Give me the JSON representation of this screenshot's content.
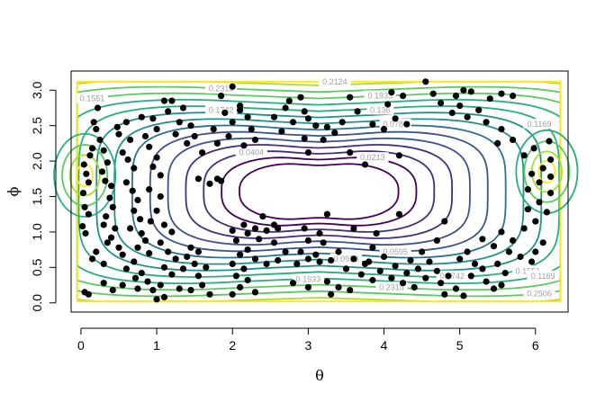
{
  "chart_data": {
    "type": "scatter",
    "title": "",
    "xlabel": "θ",
    "ylabel": "ϕ",
    "xlim": [
      -0.13,
      6.43
    ],
    "ylim": [
      -0.13,
      3.27
    ],
    "xticks": [
      "0",
      "1",
      "2",
      "3",
      "4",
      "5",
      "6"
    ],
    "yticks": [
      "0.0",
      "0.5",
      "1.0",
      "1.5",
      "2.0",
      "2.5",
      "3.0"
    ],
    "grid": false,
    "legend": "none",
    "contour_colors": [
      "#440154",
      "#472d7b",
      "#3b528b",
      "#2c728e",
      "#21918c",
      "#28ae80",
      "#5ec962",
      "#addc30",
      "#fde725"
    ],
    "contour_labels": [
      {
        "text": "0.0404",
        "x": 2.25,
        "y": 2.12
      },
      {
        "text": "0.0213",
        "x": 3.85,
        "y": 2.05
      },
      {
        "text": "0.0595",
        "x": 4.15,
        "y": 0.72
      },
      {
        "text": "0.0786",
        "x": 4.15,
        "y": 2.52
      },
      {
        "text": "0.0978",
        "x": 3.5,
        "y": 0.62
      },
      {
        "text": "0.1169",
        "x": 6.05,
        "y": 2.52
      },
      {
        "text": "0.136",
        "x": 3.95,
        "y": 2.72
      },
      {
        "text": "0.1551",
        "x": 0.15,
        "y": 2.88
      },
      {
        "text": "0.1742",
        "x": 1.85,
        "y": 2.72
      },
      {
        "text": "0.1933",
        "x": 3.95,
        "y": 2.92
      },
      {
        "text": "0.2124",
        "x": 3.35,
        "y": 3.12
      },
      {
        "text": "0.2315",
        "x": 1.85,
        "y": 3.02
      },
      {
        "text": "0.1551",
        "x": 5.9,
        "y": 0.45
      },
      {
        "text": "0.1169",
        "x": 6.1,
        "y": 0.38
      },
      {
        "text": "0.1742",
        "x": 4.9,
        "y": 0.38
      },
      {
        "text": "0.2506",
        "x": 6.05,
        "y": 0.13
      },
      {
        "text": "0.1933",
        "x": 3.0,
        "y": 0.33
      },
      {
        "text": "0.2315",
        "x": 4.1,
        "y": 0.22
      }
    ],
    "points": [
      [
        0.04,
        1.95
      ],
      [
        0.07,
        1.82
      ],
      [
        0.1,
        1.7
      ],
      [
        0.03,
        1.55
      ],
      [
        0.05,
        1.35
      ],
      [
        0.1,
        1.25
      ],
      [
        0.02,
        1.08
      ],
      [
        0.06,
        0.98
      ],
      [
        0.12,
        2.08
      ],
      [
        0.15,
        2.18
      ],
      [
        0.17,
        2.55
      ],
      [
        0.22,
        2.75
      ],
      [
        0.2,
        2.45
      ],
      [
        0.25,
        2.3
      ],
      [
        0.3,
        2.15
      ],
      [
        0.35,
        1.98
      ],
      [
        0.28,
        1.85
      ],
      [
        0.32,
        1.72
      ],
      [
        0.4,
        1.65
      ],
      [
        0.38,
        1.48
      ],
      [
        0.42,
        1.35
      ],
      [
        0.33,
        1.22
      ],
      [
        0.3,
        1.1
      ],
      [
        0.45,
        1.05
      ],
      [
        0.4,
        0.92
      ],
      [
        0.35,
        0.85
      ],
      [
        0.5,
        0.78
      ],
      [
        0.2,
        0.72
      ],
      [
        0.15,
        0.62
      ],
      [
        0.3,
        0.55
      ],
      [
        0.55,
        0.68
      ],
      [
        0.48,
        2.48
      ],
      [
        0.5,
        2.38
      ],
      [
        0.6,
        2.55
      ],
      [
        0.65,
        2.3
      ],
      [
        0.55,
        2.12
      ],
      [
        0.62,
        2.02
      ],
      [
        0.7,
        1.9
      ],
      [
        0.6,
        1.7
      ],
      [
        0.68,
        1.58
      ],
      [
        0.75,
        1.45
      ],
      [
        0.7,
        1.3
      ],
      [
        0.78,
        1.18
      ],
      [
        0.65,
        1.05
      ],
      [
        0.8,
        0.98
      ],
      [
        0.85,
        0.88
      ],
      [
        0.75,
        0.78
      ],
      [
        0.9,
        0.7
      ],
      [
        0.7,
        0.58
      ],
      [
        0.6,
        0.48
      ],
      [
        0.8,
        0.42
      ],
      [
        0.72,
        0.35
      ],
      [
        0.05,
        0.15
      ],
      [
        0.1,
        0.12
      ],
      [
        0.3,
        0.28
      ],
      [
        0.42,
        0.18
      ],
      [
        0.55,
        0.25
      ],
      [
        0.75,
        0.2
      ],
      [
        0.88,
        0.3
      ],
      [
        0.95,
        0.18
      ],
      [
        0.8,
        2.62
      ],
      [
        0.95,
        2.6
      ],
      [
        1.0,
        2.45
      ],
      [
        0.85,
        2.35
      ],
      [
        0.9,
        2.2
      ],
      [
        1.0,
        2.05
      ],
      [
        0.95,
        1.92
      ],
      [
        1.05,
        1.8
      ],
      [
        0.9,
        1.6
      ],
      [
        1.05,
        1.5
      ],
      [
        1.0,
        1.3
      ],
      [
        0.92,
        1.15
      ],
      [
        1.1,
        1.1
      ],
      [
        1.2,
        1.0
      ],
      [
        1.05,
        0.85
      ],
      [
        1.15,
        0.72
      ],
      [
        1.25,
        0.62
      ],
      [
        1.1,
        0.5
      ],
      [
        1.2,
        0.4
      ],
      [
        1.05,
        0.25
      ],
      [
        1.3,
        0.2
      ],
      [
        1.1,
        0.08
      ],
      [
        1.0,
        0.05
      ],
      [
        1.15,
        2.7
      ],
      [
        1.2,
        2.85
      ],
      [
        1.35,
        2.75
      ],
      [
        1.1,
        2.85
      ],
      [
        1.3,
        2.55
      ],
      [
        1.45,
        2.5
      ],
      [
        1.25,
        2.38
      ],
      [
        1.5,
        2.35
      ],
      [
        1.4,
        2.25
      ],
      [
        1.6,
        2.12
      ],
      [
        1.45,
        0.78
      ],
      [
        1.55,
        0.72
      ],
      [
        1.4,
        0.65
      ],
      [
        1.5,
        0.55
      ],
      [
        1.65,
        0.5
      ],
      [
        1.35,
        0.48
      ],
      [
        1.55,
        0.38
      ],
      [
        1.6,
        0.25
      ],
      [
        1.45,
        0.18
      ],
      [
        1.7,
        0.12
      ],
      [
        1.55,
        1.75
      ],
      [
        1.7,
        1.68
      ],
      [
        1.85,
        1.72
      ],
      [
        1.8,
        2.25
      ],
      [
        1.95,
        2.35
      ],
      [
        2.0,
        2.55
      ],
      [
        1.9,
        2.68
      ],
      [
        2.1,
        2.72
      ],
      [
        1.85,
        2.92
      ],
      [
        2.0,
        3.05
      ],
      [
        2.1,
        2.78
      ],
      [
        2.2,
        2.62
      ],
      [
        2.25,
        2.45
      ],
      [
        2.3,
        2.3
      ],
      [
        2.15,
        2.22
      ],
      [
        2.05,
        0.88
      ],
      [
        2.2,
        0.98
      ],
      [
        2.0,
        1.02
      ],
      [
        2.15,
        1.1
      ],
      [
        2.3,
        1.05
      ],
      [
        2.35,
        0.9
      ],
      [
        2.2,
        0.75
      ],
      [
        2.1,
        0.68
      ],
      [
        2.3,
        0.62
      ],
      [
        2.0,
        0.55
      ],
      [
        2.15,
        0.48
      ],
      [
        2.05,
        0.38
      ],
      [
        2.2,
        0.32
      ],
      [
        2.1,
        0.22
      ],
      [
        2.3,
        0.15
      ],
      [
        2.0,
        0.12
      ],
      [
        2.45,
        0.55
      ],
      [
        2.6,
        0.6
      ],
      [
        2.7,
        0.72
      ],
      [
        2.55,
        0.85
      ],
      [
        2.45,
        1.02
      ],
      [
        2.4,
        1.22
      ],
      [
        2.55,
        1.1
      ],
      [
        2.7,
        2.75
      ],
      [
        2.55,
        2.62
      ],
      [
        2.8,
        2.55
      ],
      [
        2.65,
        2.42
      ],
      [
        2.75,
        2.85
      ],
      [
        2.9,
        2.9
      ],
      [
        2.95,
        2.7
      ],
      [
        3.0,
        2.6
      ],
      [
        3.1,
        2.5
      ],
      [
        3.25,
        2.48
      ],
      [
        3.2,
        2.3
      ],
      [
        3.35,
        2.4
      ],
      [
        3.45,
        2.55
      ],
      [
        3.0,
        2.12
      ],
      [
        2.95,
        2.32
      ],
      [
        3.25,
        1.25
      ],
      [
        2.85,
        0.55
      ],
      [
        3.0,
        0.62
      ],
      [
        3.1,
        0.68
      ],
      [
        2.9,
        0.72
      ],
      [
        3.15,
        0.58
      ],
      [
        3.3,
        0.6
      ],
      [
        3.4,
        0.72
      ],
      [
        3.2,
        0.85
      ],
      [
        3.0,
        0.88
      ],
      [
        3.15,
        0.98
      ],
      [
        2.8,
        0.28
      ],
      [
        3.0,
        0.22
      ],
      [
        3.25,
        0.3
      ],
      [
        3.4,
        0.22
      ],
      [
        3.55,
        0.18
      ],
      [
        3.3,
        0.12
      ],
      [
        3.6,
        0.62
      ],
      [
        3.75,
        0.55
      ],
      [
        3.5,
        0.48
      ],
      [
        3.7,
        0.4
      ],
      [
        3.85,
        0.32
      ],
      [
        3.95,
        0.45
      ],
      [
        3.8,
        0.58
      ],
      [
        4.0,
        0.65
      ],
      [
        4.15,
        0.52
      ],
      [
        4.3,
        0.42
      ],
      [
        4.1,
        0.35
      ],
      [
        4.25,
        0.28
      ],
      [
        4.4,
        0.22
      ],
      [
        4.55,
        0.35
      ],
      [
        4.45,
        0.48
      ],
      [
        4.35,
        0.6
      ],
      [
        4.5,
        0.72
      ],
      [
        4.6,
        0.58
      ],
      [
        4.7,
        0.45
      ],
      [
        4.85,
        0.38
      ],
      [
        4.75,
        0.28
      ],
      [
        4.95,
        0.2
      ],
      [
        4.8,
        0.12
      ],
      [
        5.05,
        0.1
      ],
      [
        5.0,
        0.62
      ],
      [
        5.1,
        0.72
      ],
      [
        5.2,
        0.55
      ],
      [
        5.3,
        0.48
      ],
      [
        5.15,
        0.38
      ],
      [
        5.35,
        0.3
      ],
      [
        5.45,
        0.2
      ],
      [
        5.55,
        0.25
      ],
      [
        5.6,
        0.42
      ],
      [
        5.5,
        0.55
      ],
      [
        5.65,
        0.72
      ],
      [
        5.45,
        0.8
      ],
      [
        5.3,
        0.9
      ],
      [
        5.55,
        1.0
      ],
      [
        5.7,
        0.88
      ],
      [
        5.8,
        0.65
      ],
      [
        5.95,
        0.58
      ],
      [
        6.0,
        0.72
      ],
      [
        6.1,
        0.85
      ],
      [
        5.85,
        1.05
      ],
      [
        6.0,
        1.15
      ],
      [
        6.15,
        1.28
      ],
      [
        5.9,
        1.32
      ],
      [
        6.05,
        1.42
      ],
      [
        6.2,
        1.55
      ],
      [
        5.9,
        1.6
      ],
      [
        6.05,
        1.7
      ],
      [
        6.2,
        1.78
      ],
      [
        5.95,
        1.82
      ],
      [
        6.1,
        1.9
      ],
      [
        6.2,
        2.02
      ],
      [
        5.85,
        2.08
      ],
      [
        5.98,
        2.18
      ],
      [
        6.18,
        2.28
      ],
      [
        5.7,
        2.3
      ],
      [
        5.5,
        2.25
      ],
      [
        5.55,
        2.45
      ],
      [
        5.35,
        2.55
      ],
      [
        5.1,
        2.62
      ],
      [
        5.25,
        2.72
      ],
      [
        5.0,
        2.78
      ],
      [
        4.9,
        2.68
      ],
      [
        4.75,
        2.82
      ],
      [
        4.95,
        2.92
      ],
      [
        5.05,
        3.0
      ],
      [
        5.15,
        2.98
      ],
      [
        5.55,
        2.95
      ],
      [
        5.7,
        2.92
      ],
      [
        5.4,
        2.88
      ],
      [
        4.65,
        2.95
      ],
      [
        4.55,
        3.12
      ],
      [
        4.25,
        2.92
      ],
      [
        4.1,
        2.97
      ],
      [
        4.05,
        2.8
      ],
      [
        4.15,
        2.6
      ],
      [
        4.3,
        2.52
      ],
      [
        4.0,
        2.45
      ],
      [
        3.85,
        2.52
      ],
      [
        3.65,
        2.7
      ],
      [
        3.55,
        2.9
      ],
      [
        3.75,
        1.95
      ],
      [
        3.55,
        2.12
      ],
      [
        4.2,
        2.08
      ],
      [
        4.2,
        1.25
      ],
      [
        4.8,
        1.15
      ],
      [
        4.7,
        0.88
      ],
      [
        3.85,
        0.78
      ],
      [
        3.9,
        0.98
      ],
      [
        3.6,
        1.05
      ],
      [
        2.95,
        1.05
      ],
      [
        2.6,
        1.05
      ],
      [
        1.8,
        1.75
      ],
      [
        1.75,
        2.45
      ]
    ]
  }
}
